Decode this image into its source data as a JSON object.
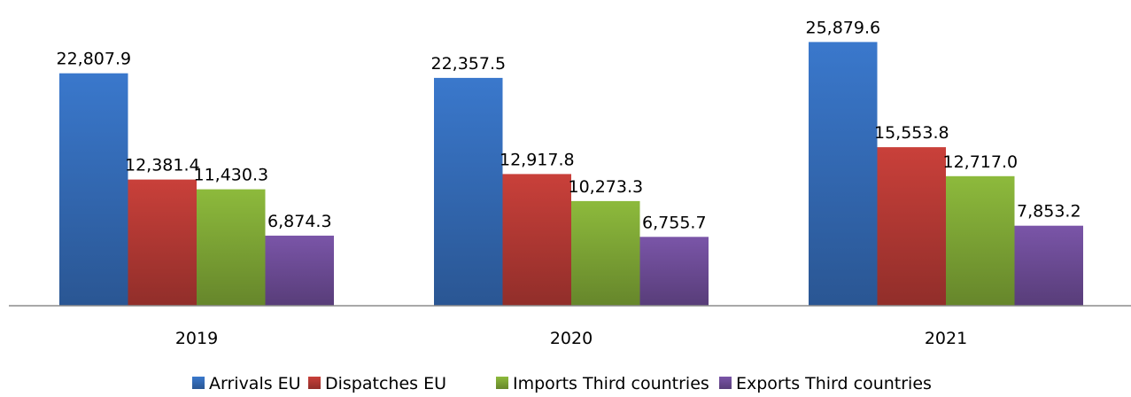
{
  "chart_data": {
    "type": "bar",
    "title": "",
    "xlabel": "",
    "ylabel": "",
    "categories": [
      "2019",
      "2020",
      "2021"
    ],
    "series": [
      {
        "name": "Arrivals EU",
        "color": "#3A78CC",
        "values": [
          22807.9,
          22357.5,
          25879.6
        ],
        "labels": [
          "22,807.9",
          "22,357.5",
          "25,879.6"
        ]
      },
      {
        "name": "Dispatches EU",
        "color": "#C9403A",
        "values": [
          12381.4,
          12917.8,
          15553.8
        ],
        "labels": [
          "12,381.4",
          "12,917.8",
          "15,553.8"
        ]
      },
      {
        "name": "Imports Third countries",
        "color": "#8DBA3C",
        "values": [
          11430.3,
          10273.3,
          12717.0
        ],
        "labels": [
          "11,430.3",
          "10,273.3",
          "12,717.0"
        ]
      },
      {
        "name": "Exports Third countries",
        "color": "#7A55A8",
        "values": [
          6874.3,
          6755.7,
          7853.2
        ],
        "labels": [
          "6,874.3",
          "6,755.7",
          "7,853.2"
        ]
      }
    ],
    "ylim": [
      0,
      27000
    ],
    "grid": false,
    "legend_position": "bottom"
  }
}
